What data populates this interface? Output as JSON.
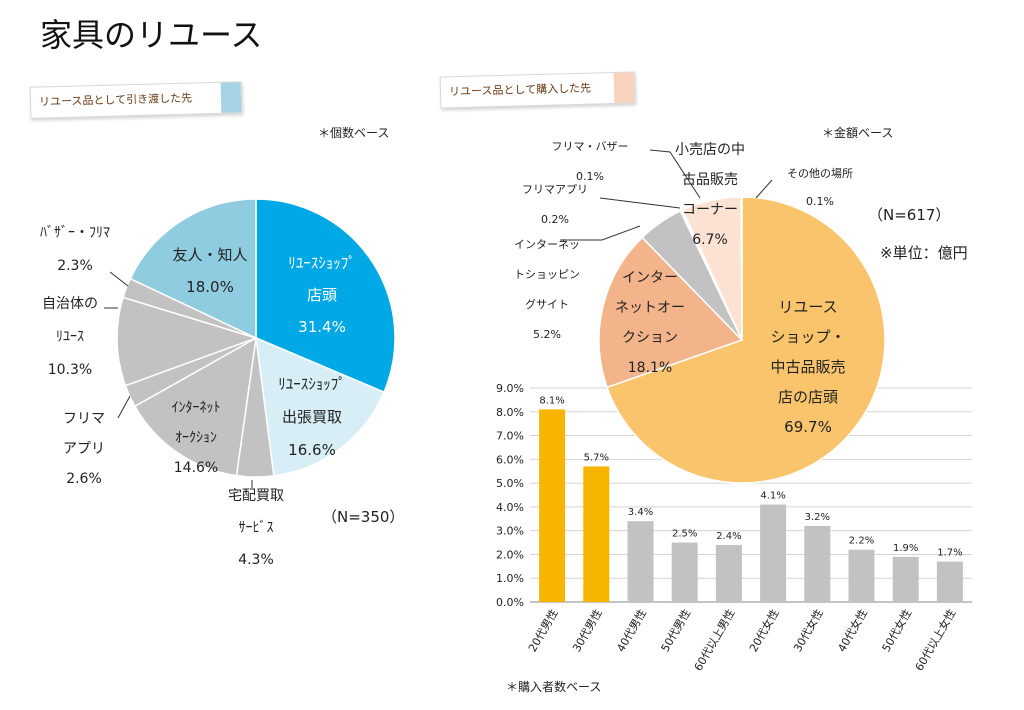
{
  "page": {
    "title": "家具のリユース"
  },
  "colors": {
    "blue": "#00a8e6",
    "light_blue": "#d7eef7",
    "sky": "#8fcce0",
    "gray": "#c2c2c2",
    "orange": "#f9c46b",
    "salmon": "#f4b48b",
    "peach": "#fbe2d2",
    "gold": "#f7b500",
    "tag1_accent": "#a7d3e6",
    "tag2_accent": "#f9d2bd"
  },
  "left_section": {
    "tag": "リユース品として引き渡した先",
    "base_note": "＊個数ベース",
    "n_note": "（N=350）"
  },
  "right_section": {
    "tag": "リユース品として購入した先",
    "base_note": "＊金額ベース",
    "n_note": "（N=617）",
    "unit_note": "※単位：億円",
    "bar_note": "＊購入者数ベース"
  },
  "chart_data": [
    {
      "type": "pie",
      "slices": [
        {
          "label": "リユースショップ店頭",
          "value": 31.4,
          "label_lines": [
            "ﾘﾕｰｽｼｮｯﾌﾟ",
            "店頭",
            "31.4%"
          ],
          "color": "blue",
          "text_color": "#ffffff"
        },
        {
          "label": "リユースショップ出張買取",
          "value": 16.6,
          "label_lines": [
            "ﾘﾕｰｽｼｮｯﾌﾟ",
            "出張買取",
            "16.6%"
          ],
          "color": "light_blue",
          "text_color": "#222222"
        },
        {
          "label": "宅配買取サービス",
          "value": 4.3,
          "label_lines": [
            "宅配買取",
            "ｻｰﾋﾞｽ",
            "4.3%"
          ],
          "color": "gray",
          "text_color": "#222222"
        },
        {
          "label": "インターネットオークション",
          "value": 14.6,
          "label_lines": [
            "ｲﾝﾀｰﾈｯﾄ",
            "ｵｰｸｼｮﾝ",
            "14.6%"
          ],
          "color": "gray",
          "text_color": "#222222"
        },
        {
          "label": "フリマアプリ",
          "value": 2.6,
          "label_lines": [
            "フリマ",
            "アプリ",
            "2.6%"
          ],
          "color": "gray",
          "text_color": "#222222"
        },
        {
          "label": "自治体のリユース",
          "value": 10.3,
          "label_lines": [
            "自治体の",
            "ﾘﾕｰｽ",
            "10.3%"
          ],
          "color": "gray",
          "text_color": "#222222"
        },
        {
          "label": "バザー・フリマ",
          "value": 2.3,
          "label_lines": [
            "ﾊﾞｻﾞｰ・ﾌﾘﾏ",
            "2.3%"
          ],
          "color": "gray",
          "text_color": "#222222"
        },
        {
          "label": "友人・知人",
          "value": 18.0,
          "label_lines": [
            "友人・知人",
            "18.0%"
          ],
          "color": "sky",
          "text_color": "#222222"
        }
      ]
    },
    {
      "type": "pie",
      "slices": [
        {
          "label": "リユースショップ・中古品販売店の店頭",
          "value": 69.7,
          "label_lines": [
            "リユース",
            "ショップ・",
            "中古品販売",
            "店の店頭",
            "69.7%"
          ],
          "color": "orange",
          "text_color": "#222222"
        },
        {
          "label": "インターネットオークション",
          "value": 18.1,
          "label_lines": [
            "インター",
            "ネットオー",
            "クション",
            "18.1%"
          ],
          "color": "salmon",
          "text_color": "#222222"
        },
        {
          "label": "インターネットショッピングサイト",
          "value": 5.2,
          "label_lines": [
            "インターネッ",
            "トショッピン",
            "グサイト",
            "5.2%"
          ],
          "color": "gray",
          "text_color": "#222222"
        },
        {
          "label": "フリマアプリ",
          "value": 0.2,
          "label_lines": [
            "フリマアプリ",
            "0.2%"
          ],
          "color": "gray",
          "text_color": "#222222"
        },
        {
          "label": "フリマ・バザー",
          "value": 0.1,
          "label_lines": [
            "フリマ・バザー",
            "0.1%"
          ],
          "color": "gray",
          "text_color": "#222222"
        },
        {
          "label": "小売店の中古品販売コーナー",
          "value": 6.7,
          "label_lines": [
            "小売店の中",
            "古品販売",
            "コーナー",
            "6.7%"
          ],
          "color": "peach",
          "text_color": "#222222"
        },
        {
          "label": "その他の場所",
          "value": 0.1,
          "label_lines": [
            "その他の場所",
            "0.1%"
          ],
          "color": "gray",
          "text_color": "#222222"
        }
      ]
    },
    {
      "type": "bar",
      "categories": [
        "20代男性",
        "30代男性",
        "40代男性",
        "50代男性",
        "60代以上男性",
        "20代女性",
        "30代女性",
        "40代女性",
        "50代女性",
        "60代以上女性"
      ],
      "values": [
        8.1,
        5.7,
        3.4,
        2.5,
        2.4,
        4.1,
        3.2,
        2.2,
        1.9,
        1.7
      ],
      "value_labels": [
        "8.1%",
        "5.7%",
        "3.4%",
        "2.5%",
        "2.4%",
        "4.1%",
        "3.2%",
        "2.2%",
        "1.9%",
        "1.7%"
      ],
      "highlight": [
        true,
        true,
        false,
        false,
        false,
        false,
        false,
        false,
        false,
        false
      ],
      "ylim": [
        0,
        9
      ],
      "yticks": [
        "0.0%",
        "1.0%",
        "2.0%",
        "3.0%",
        "4.0%",
        "5.0%",
        "6.0%",
        "7.0%",
        "8.0%",
        "9.0%"
      ],
      "grid": true
    }
  ]
}
